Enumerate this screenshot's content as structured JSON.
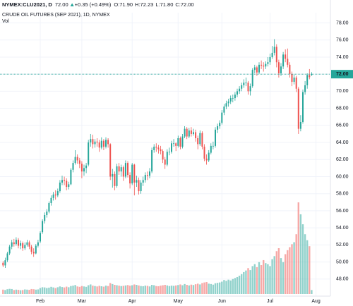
{
  "chart_data": {
    "type": "candlestick",
    "symbol": "NYMEX:CLU2021, D",
    "price": "72.00",
    "change": "+0.35 (+0.49%)",
    "quote": [
      {
        "label": "O:",
        "value": "71.90"
      },
      {
        "label": "H:",
        "value": "72.23"
      },
      {
        "label": "L:",
        "value": "71.80"
      },
      {
        "label": "C:",
        "value": "72.00"
      }
    ],
    "title": "CRUDE OIL FUTURES (SEP 2021), 1D, NYMEX",
    "volume_label": "Vol",
    "up_color": "#26a69a",
    "down_color": "#ef5350",
    "grid": true,
    "ylim": [
      46,
      79.2
    ],
    "yticks": [
      {
        "value": 48,
        "label": "48.00"
      },
      {
        "value": 50,
        "label": "50.00"
      },
      {
        "value": 52,
        "label": "52.00"
      },
      {
        "value": 54,
        "label": "54.00"
      },
      {
        "value": 56,
        "label": "56.00"
      },
      {
        "value": 58,
        "label": "58.00"
      },
      {
        "value": 60,
        "label": "60.00"
      },
      {
        "value": 62,
        "label": "62.00"
      },
      {
        "value": 64,
        "label": "64.00"
      },
      {
        "value": 66,
        "label": "66.00"
      },
      {
        "value": 68,
        "label": "68.00"
      },
      {
        "value": 70,
        "label": "70.00"
      },
      {
        "value": 72,
        "label": "72.00"
      },
      {
        "value": 74,
        "label": "74.00"
      },
      {
        "value": 76,
        "label": "76.00"
      },
      {
        "value": 78,
        "label": "78.00"
      }
    ],
    "last": {
      "value": 72,
      "label": "72.00"
    },
    "categories": [
      null,
      null,
      null,
      null,
      null,
      null,
      null,
      null,
      null,
      null,
      null,
      null,
      null,
      null,
      null,
      null,
      null,
      "Feb",
      null,
      null,
      null,
      null,
      null,
      null,
      null,
      null,
      null,
      null,
      null,
      null,
      null,
      null,
      null,
      null,
      null,
      null,
      "Mar",
      null,
      null,
      null,
      null,
      null,
      null,
      null,
      null,
      null,
      null,
      null,
      null,
      null,
      null,
      null,
      null,
      null,
      null,
      null,
      null,
      null,
      null,
      "Apr",
      null,
      null,
      null,
      null,
      null,
      null,
      null,
      null,
      null,
      null,
      null,
      null,
      null,
      null,
      null,
      null,
      null,
      null,
      null,
      null,
      "May",
      null,
      null,
      null,
      null,
      null,
      null,
      null,
      null,
      null,
      null,
      null,
      null,
      null,
      null,
      null,
      null,
      null,
      null,
      null,
      "Jun",
      null,
      null,
      null,
      null,
      null,
      null,
      null,
      null,
      null,
      null,
      null,
      null,
      null,
      null,
      null,
      null,
      null,
      null,
      null,
      null,
      null,
      "Jul",
      null,
      null,
      null,
      null,
      null,
      null,
      null,
      null,
      null,
      null,
      null,
      null,
      null,
      null,
      null,
      null,
      null,
      null,
      null,
      null,
      "Aug"
    ],
    "ohlc": [
      [
        49.9,
        50.1,
        49.4,
        49.6
      ],
      [
        49.6,
        50.5,
        49.3,
        50.2
      ],
      [
        50.2,
        51.2,
        50.0,
        51.0
      ],
      [
        51.0,
        52.0,
        50.8,
        51.8
      ],
      [
        51.8,
        52.6,
        51.5,
        52.3
      ],
      [
        52.3,
        52.7,
        51.8,
        52.1
      ],
      [
        52.1,
        52.9,
        51.9,
        52.6
      ],
      [
        52.6,
        52.8,
        51.6,
        51.9
      ],
      [
        51.9,
        52.5,
        51.5,
        52.2
      ],
      [
        52.2,
        52.4,
        51.3,
        51.6
      ],
      [
        51.6,
        52.3,
        51.4,
        52.0
      ],
      [
        52.0,
        52.6,
        51.8,
        52.3
      ],
      [
        52.3,
        52.5,
        51.5,
        51.8
      ],
      [
        51.8,
        52.0,
        50.9,
        51.2
      ],
      [
        51.2,
        51.6,
        50.6,
        51.0
      ],
      [
        51.0,
        52.1,
        50.9,
        51.9
      ],
      [
        51.9,
        52.6,
        51.7,
        52.3
      ],
      [
        52.4,
        53.6,
        52.2,
        53.4
      ],
      [
        53.5,
        55.0,
        53.3,
        54.8
      ],
      [
        54.8,
        55.8,
        54.5,
        55.5
      ],
      [
        55.5,
        56.2,
        55.2,
        55.9
      ],
      [
        55.9,
        57.1,
        55.7,
        56.9
      ],
      [
        56.9,
        57.8,
        56.6,
        57.5
      ],
      [
        57.5,
        58.2,
        57.2,
        57.9
      ],
      [
        57.9,
        58.4,
        57.3,
        57.8
      ],
      [
        57.8,
        58.6,
        57.6,
        58.3
      ],
      [
        58.3,
        59.6,
        58.1,
        59.3
      ],
      [
        59.3,
        60.1,
        59.0,
        59.6
      ],
      [
        59.6,
        60.0,
        59.0,
        59.5
      ],
      [
        59.5,
        59.8,
        58.4,
        58.8
      ],
      [
        58.8,
        59.4,
        58.5,
        59.1
      ],
      [
        59.1,
        61.0,
        59.0,
        60.8
      ],
      [
        60.8,
        61.9,
        60.5,
        61.6
      ],
      [
        61.6,
        63.1,
        61.4,
        62.3
      ],
      [
        62.3,
        62.6,
        61.5,
        61.9
      ],
      [
        61.9,
        62.2,
        61.0,
        61.5
      ],
      [
        61.5,
        61.8,
        59.8,
        60.6
      ],
      [
        60.6,
        61.4,
        60.1,
        61.0
      ],
      [
        61.0,
        61.6,
        60.4,
        61.3
      ],
      [
        61.4,
        64.3,
        61.2,
        64.0
      ],
      [
        64.0,
        65.0,
        63.5,
        64.4
      ],
      [
        64.4,
        64.9,
        63.3,
        63.8
      ],
      [
        63.8,
        64.4,
        63.4,
        64.1
      ],
      [
        64.1,
        64.5,
        63.5,
        64.0
      ],
      [
        64.0,
        64.3,
        62.9,
        63.4
      ],
      [
        63.4,
        64.6,
        63.2,
        64.2
      ],
      [
        64.2,
        64.4,
        63.1,
        63.5
      ],
      [
        63.5,
        64.6,
        63.3,
        64.3
      ],
      [
        64.3,
        64.5,
        63.4,
        63.8
      ],
      [
        63.8,
        63.9,
        59.6,
        60.0
      ],
      [
        60.0,
        60.9,
        58.7,
        60.3
      ],
      [
        60.3,
        60.6,
        58.4,
        58.9
      ],
      [
        58.9,
        61.5,
        58.7,
        61.2
      ],
      [
        61.2,
        61.6,
        60.2,
        60.6
      ],
      [
        60.6,
        61.4,
        60.0,
        61.1
      ],
      [
        61.1,
        61.3,
        59.5,
        60.0
      ],
      [
        60.0,
        61.9,
        59.8,
        61.6
      ],
      [
        61.6,
        61.8,
        59.9,
        60.2
      ],
      [
        60.2,
        60.5,
        58.6,
        59.2
      ],
      [
        59.2,
        61.6,
        59.0,
        61.4
      ],
      [
        61.4,
        61.5,
        57.8,
        59.3
      ],
      [
        59.3,
        60.1,
        58.8,
        59.6
      ],
      [
        59.6,
        59.9,
        57.9,
        58.3
      ],
      [
        58.3,
        59.6,
        58.0,
        59.3
      ],
      [
        59.3,
        60.0,
        58.9,
        59.6
      ],
      [
        59.6,
        60.5,
        59.3,
        60.2
      ],
      [
        60.2,
        60.6,
        59.6,
        60.1
      ],
      [
        60.1,
        61.0,
        59.8,
        60.6
      ],
      [
        60.6,
        63.4,
        60.4,
        63.1
      ],
      [
        63.1,
        63.8,
        62.8,
        63.5
      ],
      [
        63.5,
        63.9,
        62.9,
        63.4
      ],
      [
        63.4,
        63.7,
        62.7,
        63.2
      ],
      [
        63.2,
        63.6,
        62.6,
        63.0
      ],
      [
        63.0,
        63.2,
        61.6,
        62.0
      ],
      [
        62.0,
        62.3,
        60.9,
        61.4
      ],
      [
        61.4,
        63.2,
        61.2,
        62.9
      ],
      [
        62.9,
        63.4,
        62.5,
        62.9
      ],
      [
        62.9,
        64.2,
        62.7,
        63.9
      ],
      [
        63.9,
        64.4,
        63.5,
        63.9
      ],
      [
        63.9,
        64.0,
        63.0,
        63.6
      ],
      [
        63.6,
        64.8,
        63.4,
        64.5
      ],
      [
        64.5,
        64.7,
        63.2,
        63.5
      ],
      [
        63.5,
        65.0,
        63.3,
        64.7
      ],
      [
        64.7,
        65.9,
        64.5,
        65.6
      ],
      [
        65.6,
        65.8,
        64.4,
        64.7
      ],
      [
        64.7,
        65.7,
        64.5,
        65.4
      ],
      [
        65.4,
        65.8,
        64.7,
        65.0
      ],
      [
        65.0,
        65.6,
        64.8,
        65.2
      ],
      [
        65.2,
        65.5,
        64.1,
        64.5
      ],
      [
        64.5,
        64.8,
        63.2,
        63.8
      ],
      [
        63.8,
        65.4,
        63.6,
        65.1
      ],
      [
        65.1,
        65.3,
        63.2,
        63.5
      ],
      [
        63.5,
        63.8,
        61.8,
        62.1
      ],
      [
        62.1,
        62.6,
        61.4,
        61.9
      ],
      [
        61.9,
        63.1,
        61.7,
        62.8
      ],
      [
        62.8,
        63.9,
        62.6,
        63.6
      ],
      [
        63.6,
        64.1,
        63.2,
        63.6
      ],
      [
        63.6,
        65.8,
        63.4,
        65.5
      ],
      [
        65.5,
        66.2,
        65.1,
        65.9
      ],
      [
        65.9,
        66.6,
        65.6,
        66.3
      ],
      [
        66.3,
        67.8,
        66.1,
        67.5
      ],
      [
        67.5,
        68.5,
        67.2,
        68.2
      ],
      [
        68.2,
        68.9,
        67.9,
        68.6
      ],
      [
        68.6,
        69.1,
        68.2,
        68.8
      ],
      [
        68.8,
        69.5,
        68.5,
        69.2
      ],
      [
        69.2,
        69.6,
        68.7,
        69.2
      ],
      [
        69.2,
        69.9,
        68.9,
        69.6
      ],
      [
        69.6,
        70.3,
        69.3,
        70.0
      ],
      [
        70.0,
        70.6,
        69.7,
        70.3
      ],
      [
        70.3,
        71.0,
        70.0,
        70.7
      ],
      [
        70.7,
        71.4,
        70.4,
        71.0
      ],
      [
        71.0,
        71.6,
        70.6,
        71.0
      ],
      [
        71.0,
        71.2,
        69.6,
        70.0
      ],
      [
        70.0,
        70.9,
        69.5,
        70.6
      ],
      [
        70.6,
        72.7,
        70.4,
        72.5
      ],
      [
        72.5,
        73.1,
        72.1,
        72.8
      ],
      [
        72.8,
        73.0,
        71.8,
        72.2
      ],
      [
        72.2,
        73.4,
        72.0,
        73.1
      ],
      [
        73.1,
        73.6,
        72.6,
        73.0
      ],
      [
        73.0,
        73.4,
        72.3,
        72.9
      ],
      [
        72.9,
        73.5,
        72.6,
        73.2
      ],
      [
        73.2,
        74.0,
        72.9,
        73.4
      ],
      [
        73.4,
        74.4,
        73.1,
        74.0
      ],
      [
        74.0,
        75.3,
        73.8,
        74.5
      ],
      [
        74.5,
        76.1,
        74.2,
        75.2
      ],
      [
        75.2,
        75.5,
        72.8,
        73.4
      ],
      [
        73.4,
        73.7,
        71.6,
        72.1
      ],
      [
        72.1,
        73.3,
        71.8,
        72.9
      ],
      [
        72.9,
        74.6,
        72.6,
        74.3
      ],
      [
        74.3,
        74.9,
        73.4,
        73.8
      ],
      [
        73.8,
        75.0,
        72.8,
        73.1
      ],
      [
        73.1,
        73.4,
        71.6,
        72.0
      ],
      [
        72.0,
        72.3,
        70.6,
        71.1
      ],
      [
        71.1,
        72.0,
        70.8,
        71.6
      ],
      [
        71.6,
        71.8,
        69.9,
        70.3
      ],
      [
        70.3,
        70.5,
        65.0,
        65.6
      ],
      [
        65.6,
        67.2,
        65.3,
        66.4
      ],
      [
        66.4,
        70.2,
        66.2,
        69.9
      ],
      [
        69.9,
        71.2,
        69.6,
        70.7
      ],
      [
        70.7,
        72.1,
        70.3,
        71.9
      ],
      [
        71.9,
        72.6,
        71.4,
        71.65
      ],
      [
        71.9,
        72.23,
        71.8,
        72.0
      ],
      null,
      null
    ],
    "volume": [
      22,
      20,
      24,
      26,
      25,
      20,
      22,
      21,
      19,
      20,
      23,
      22,
      21,
      25,
      24,
      22,
      23,
      30,
      34,
      33,
      30,
      32,
      36,
      33,
      30,
      34,
      38,
      35,
      33,
      37,
      34,
      40,
      42,
      45,
      38,
      36,
      40,
      38,
      36,
      44,
      48,
      42,
      40,
      38,
      41,
      39,
      37,
      42,
      40,
      55,
      50,
      46,
      44,
      42,
      40,
      41,
      43,
      45,
      42,
      44,
      48,
      46,
      43,
      40,
      39,
      42,
      41,
      38,
      46,
      44,
      40,
      39,
      42,
      44,
      46,
      43,
      40,
      42,
      41,
      43,
      45,
      48,
      44,
      50,
      46,
      43,
      47,
      45,
      49,
      52,
      48,
      55,
      58,
      60,
      52,
      50,
      47,
      54,
      56,
      58,
      62,
      70,
      66,
      72,
      68,
      75,
      80,
      85,
      92,
      100,
      110,
      118,
      130,
      120,
      140,
      150,
      135,
      160,
      145,
      170,
      155,
      150,
      140,
      175,
      190,
      215,
      230,
      180,
      160,
      200,
      220,
      235,
      250,
      260,
      300,
      460,
      400,
      350,
      300,
      270,
      240,
      20,
      null,
      null
    ]
  }
}
